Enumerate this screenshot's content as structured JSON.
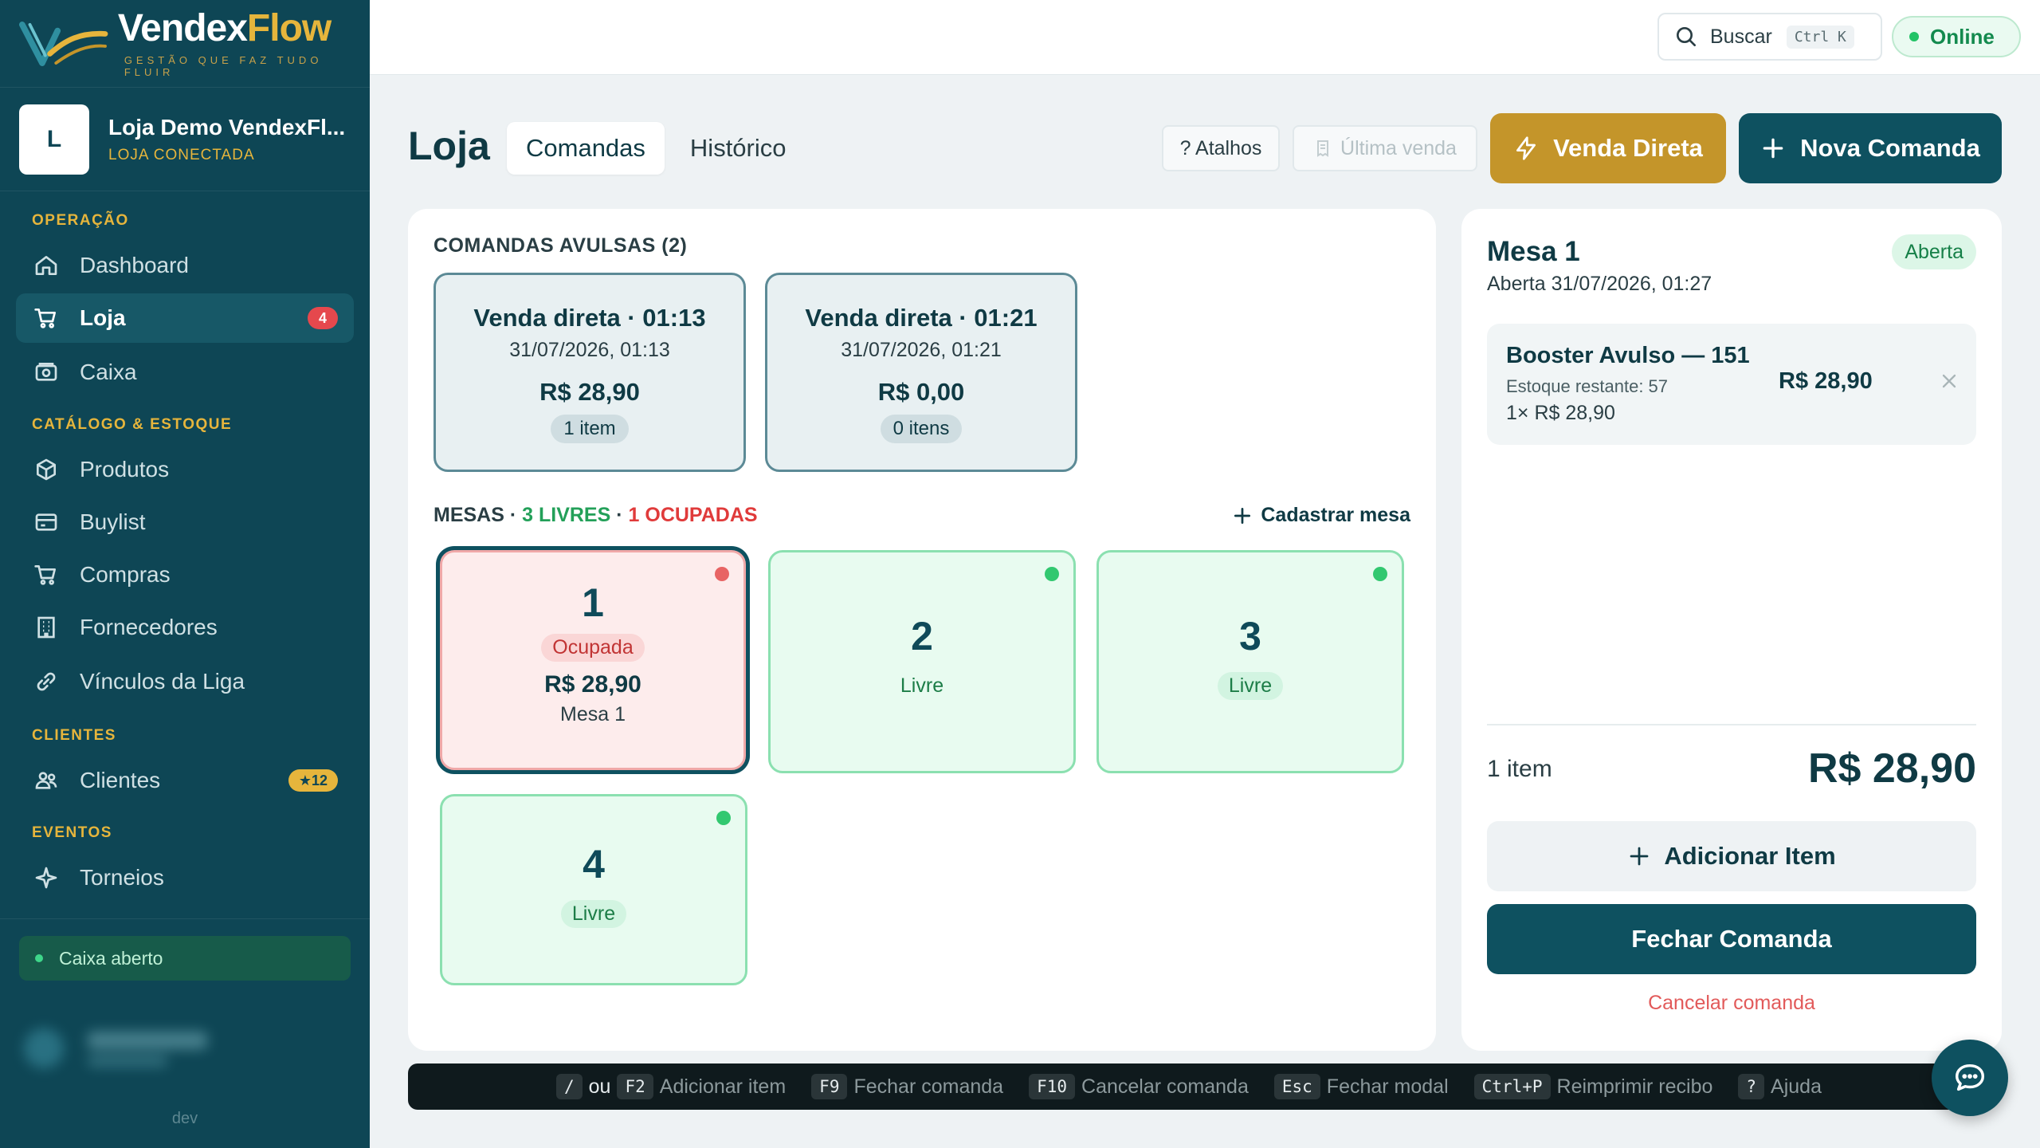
{
  "brand": {
    "name_part1": "Vendex",
    "name_part2": "Flow",
    "tagline": "GESTÃO QUE FAZ TUDO FLUIR"
  },
  "store": {
    "avatar": "L",
    "name": "Loja Demo VendexFl...",
    "status": "LOJA CONECTADA"
  },
  "sidebar": {
    "sections": [
      {
        "title": "OPERAÇÃO"
      },
      {
        "title": "CATÁLOGO & ESTOQUE"
      },
      {
        "title": "CLIENTES"
      },
      {
        "title": "EVENTOS"
      }
    ],
    "items": [
      {
        "label": "Dashboard",
        "icon": "home-icon"
      },
      {
        "label": "Loja",
        "icon": "cart-icon",
        "badge": "4",
        "active": true
      },
      {
        "label": "Caixa",
        "icon": "cash-register-icon"
      },
      {
        "label": "Produtos",
        "icon": "box-icon"
      },
      {
        "label": "Buylist",
        "icon": "card-icon"
      },
      {
        "label": "Compras",
        "icon": "cart-icon"
      },
      {
        "label": "Fornecedores",
        "icon": "building-icon"
      },
      {
        "label": "Vínculos da Liga",
        "icon": "link-icon"
      },
      {
        "label": "Clientes",
        "icon": "users-icon",
        "badge": "★12"
      },
      {
        "label": "Torneios",
        "icon": "sparkle-icon"
      }
    ],
    "caixa_status": "Caixa aberto",
    "env": "dev"
  },
  "topbar": {
    "search_label": "Buscar",
    "search_kbd": "Ctrl K",
    "online_label": "Online"
  },
  "header": {
    "title": "Loja",
    "tabs": [
      {
        "label": "Comandas",
        "active": true
      },
      {
        "label": "Histórico"
      }
    ],
    "atalhos_label": "? Atalhos",
    "ultima_venda_label": "Última venda",
    "venda_direta_label": "Venda Direta",
    "nova_comanda_label": "Nova Comanda"
  },
  "comandas": {
    "title": "COMANDAS AVULSAS (2)",
    "items": [
      {
        "title": "Venda direta · 01:13",
        "date": "31/07/2026, 01:13",
        "value": "R$ 28,90",
        "count": "1 item"
      },
      {
        "title": "Venda direta · 01:21",
        "date": "31/07/2026, 01:21",
        "value": "R$ 0,00",
        "count": "0 itens"
      }
    ]
  },
  "mesas": {
    "title": "MESAS ·",
    "livres": "3 LIVRES",
    "sep": "·",
    "ocupadas": "1 OCUPADAS",
    "cadastrar_label": "Cadastrar mesa",
    "items": [
      {
        "number": "1",
        "status": "Ocupada",
        "value": "R$ 28,90",
        "name": "Mesa 1"
      },
      {
        "number": "2",
        "status": "Livre"
      },
      {
        "number": "3",
        "status": "Livre"
      },
      {
        "number": "4",
        "status": "Livre"
      }
    ]
  },
  "detail": {
    "title": "Mesa 1",
    "subtitle": "Aberta 31/07/2026, 01:27",
    "badge": "Aberta",
    "item": {
      "name": "Booster Avulso — 151",
      "stock": "Estoque restante: 57",
      "qty": "1× R$ 28,90",
      "price": "R$ 28,90"
    },
    "count": "1 item",
    "total": "R$ 28,90",
    "add_label": "Adicionar Item",
    "close_label": "Fechar Comanda",
    "cancel_label": "Cancelar comanda"
  },
  "shortcuts": [
    {
      "key": "/",
      "sep": "ou",
      "key2": "F2",
      "label": "Adicionar item"
    },
    {
      "key": "F9",
      "label": "Fechar comanda"
    },
    {
      "key": "F10",
      "label": "Cancelar comanda"
    },
    {
      "key": "Esc",
      "label": "Fechar modal"
    },
    {
      "key": "Ctrl+P",
      "label": "Reimprimir recibo"
    },
    {
      "key": "?",
      "label": "Ajuda"
    }
  ],
  "colors": {
    "primary": "#0e5160",
    "accent": "#c4952a",
    "free": "#8be0b0",
    "occupied": "#f0a8a8"
  }
}
